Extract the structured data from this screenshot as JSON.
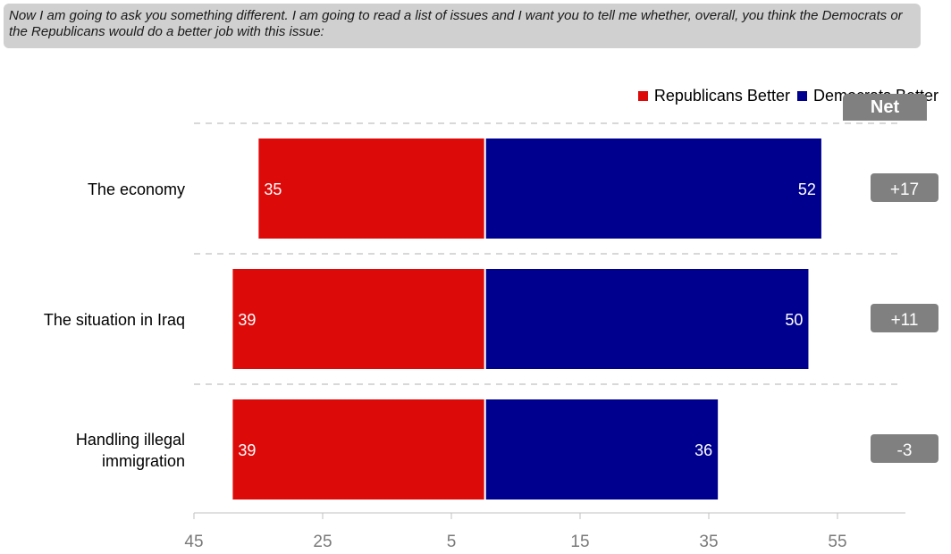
{
  "question_text": "Now I am going to ask you something different. I am going to read a list of issues and I want you to tell me whether, overall, you think the Democrats or the Republicans would do a better job with this issue:",
  "net_header": "Net",
  "chart_data": {
    "type": "bar",
    "orientation": "horizontal-diverging",
    "categories": [
      [
        "The economy"
      ],
      [
        "The situation in Iraq"
      ],
      [
        "Handling illegal",
        "immigration"
      ]
    ],
    "series": [
      {
        "name": "Republicans Better",
        "color": "#dd0a0a",
        "values": [
          35,
          39,
          39
        ]
      },
      {
        "name": "Democrats Better",
        "color": "#00008e",
        "values": [
          52,
          50,
          36
        ]
      }
    ],
    "net": [
      "+17",
      "+11",
      "-3"
    ],
    "x_tick_labels": [
      "45",
      "25",
      "5",
      "15",
      "35",
      "55"
    ],
    "xlim": [
      -45,
      65
    ],
    "grid": "dashed separators between categories",
    "legend_position": "top-right"
  }
}
